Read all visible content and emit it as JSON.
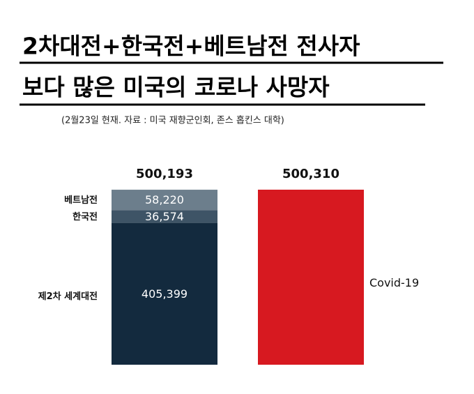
{
  "chart_data": {
    "type": "stacked-bar",
    "title": [
      "2차대전+한국전+베트남전 전사자",
      "보다 많은 미국의 코로나 사망자"
    ],
    "subtitle": "(2월23일 현재. 자료 :  미국  재향군인회, 존스 홉킨스 대학)",
    "categories": [
      null,
      null
    ],
    "series": [
      {
        "name": "제2차 세계대전",
        "color": "#132a3e",
        "values": [
          405399,
          null
        ],
        "value_labels": [
          "405,399",
          null
        ]
      },
      {
        "name": "한국전",
        "color": "#3e5466",
        "values": [
          36574,
          null
        ],
        "value_labels": [
          "36,574",
          null
        ]
      },
      {
        "name": "베트남전",
        "color": "#6c7e8c",
        "values": [
          58220,
          null
        ],
        "value_labels": [
          "58,220",
          null
        ]
      },
      {
        "name": "Covid-19",
        "color": "#d71920",
        "values": [
          null,
          500310
        ],
        "value_labels": [
          null,
          null
        ]
      }
    ],
    "totals": [
      500193,
      500310
    ],
    "total_labels": [
      "500,193",
      "500,310"
    ]
  }
}
